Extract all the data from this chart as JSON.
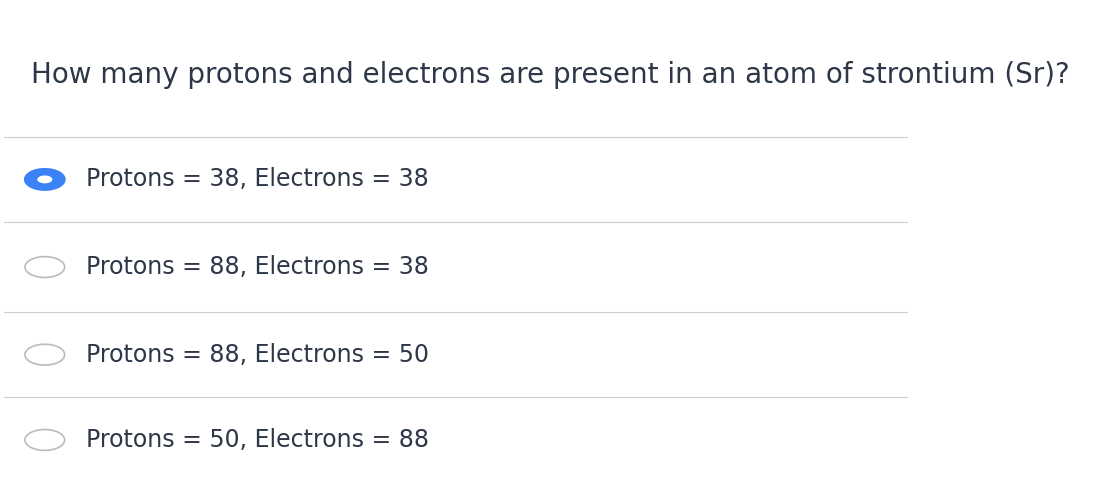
{
  "question": "How many protons and electrons are present in an atom of strontium (Sr)?",
  "options": [
    "Protons = 38, Electrons = 38",
    "Protons = 88, Electrons = 38",
    "Protons = 88, Electrons = 50",
    "Protons = 50, Electrons = 88"
  ],
  "correct_index": 0,
  "background_color": "#ffffff",
  "question_color": "#2d3748",
  "option_color": "#2d3748",
  "divider_color": "#cccccc",
  "selected_fill": "#3b82f6",
  "selected_border": "#3b82f6",
  "unselected_fill": "#ffffff",
  "unselected_border": "#bbbbbb",
  "question_fontsize": 20,
  "option_fontsize": 17,
  "fig_width": 11.13,
  "fig_height": 4.82
}
